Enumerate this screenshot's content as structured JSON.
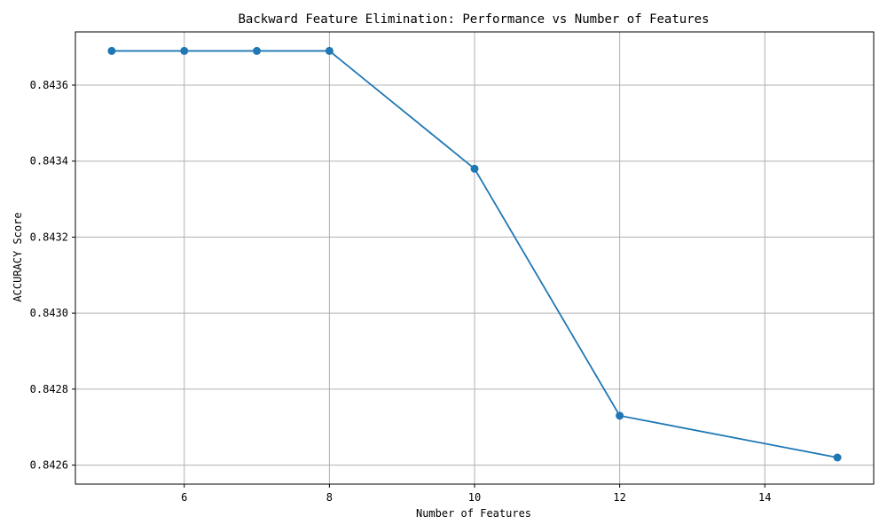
{
  "chart_data": {
    "type": "line",
    "title": "Backward Feature Elimination: Performance vs Number of Features",
    "xlabel": "Number of Features",
    "ylabel": "ACCURACY Score",
    "xlim": [
      4.5,
      15.5
    ],
    "ylim": [
      0.84255,
      0.84374
    ],
    "x_ticks": [
      6,
      8,
      10,
      12,
      14
    ],
    "y_ticks": [
      0.8426,
      0.8428,
      0.843,
      0.8432,
      0.8434,
      0.8436
    ],
    "grid": true,
    "series": [
      {
        "color": "#1f77b4",
        "marker": "circle",
        "points": [
          {
            "x": 5,
            "y": 0.84369
          },
          {
            "x": 6,
            "y": 0.84369
          },
          {
            "x": 7,
            "y": 0.84369
          },
          {
            "x": 8,
            "y": 0.84369
          },
          {
            "x": 10,
            "y": 0.84338
          },
          {
            "x": 12,
            "y": 0.84273
          },
          {
            "x": 15,
            "y": 0.84262
          }
        ]
      }
    ]
  }
}
